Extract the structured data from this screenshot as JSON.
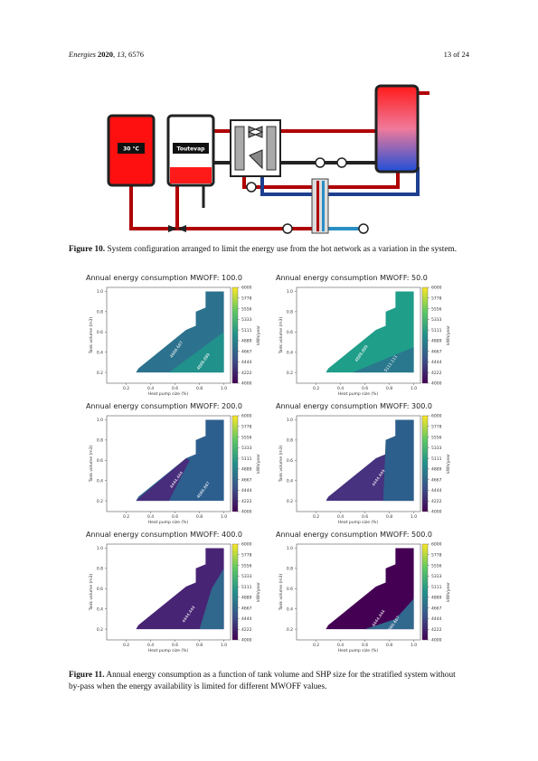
{
  "header": {
    "journal": "Energies",
    "year": "2020",
    "volume": "13",
    "article": "6576",
    "page": "13 of 24"
  },
  "figure10": {
    "tank_labels": [
      "30 °C",
      "Toutevap"
    ],
    "caption": {
      "label": "Figure 10.",
      "text": "System configuration arranged to limit the energy use from the hot network as a variation in the system."
    }
  },
  "figure11": {
    "panels": [
      {
        "title": "Annual energy consumption MWOFF: 100.0",
        "ylabel": "Tank volume (m3)",
        "xlabel": "Heat pump size (%)",
        "yticks": [
          "1.0",
          "0.8",
          "0.6",
          "0.4",
          "0.2"
        ],
        "xticks": [
          "0.2",
          "0.4",
          "0.6",
          "0.8",
          "1.0"
        ],
        "cbar_ticks": [
          "6000",
          "5778",
          "5556",
          "5333",
          "5111",
          "4889",
          "4667",
          "4444",
          "4222",
          "4000"
        ],
        "cbar_label": "kWh/year",
        "contour_labels": [
          "4666.667",
          "4888.889"
        ]
      },
      {
        "title": "Annual energy consumption MWOFF: 50.0",
        "ylabel": "Tank volume (m3)",
        "xlabel": "Heat pump size (%)",
        "yticks": [
          "1.0",
          "0.8",
          "0.6",
          "0.4",
          "0.2"
        ],
        "xticks": [
          "0.2",
          "0.4",
          "0.6",
          "0.8",
          "1.0"
        ],
        "cbar_ticks": [
          "6000",
          "5778",
          "5556",
          "5333",
          "5111",
          "4889",
          "4667",
          "4444",
          "4222",
          "4000"
        ],
        "cbar_label": "kWh/year",
        "contour_labels": [
          "4888.889",
          "5111.111"
        ]
      },
      {
        "title": "Annual energy consumption MWOFF: 200.0",
        "ylabel": "Tank volume (m3)",
        "xlabel": "Heat pump size (%)",
        "yticks": [
          "1.0",
          "0.8",
          "0.6",
          "0.4",
          "0.2"
        ],
        "xticks": [
          "0.2",
          "0.4",
          "0.6",
          "0.8",
          "1.0"
        ],
        "cbar_ticks": [
          "6000",
          "5778",
          "5556",
          "5333",
          "5111",
          "4889",
          "4667",
          "4444",
          "4222",
          "4000"
        ],
        "cbar_label": "kWh/year",
        "contour_labels": [
          "4444.444",
          "4666.667"
        ]
      },
      {
        "title": "Annual energy consumption MWOFF: 300.0",
        "ylabel": "Tank volume (m3)",
        "xlabel": "Heat pump size (%)",
        "yticks": [
          "1.0",
          "0.8",
          "0.6",
          "0.4",
          "0.2"
        ],
        "xticks": [
          "0.2",
          "0.4",
          "0.6",
          "0.8",
          "1.0"
        ],
        "cbar_ticks": [
          "6000",
          "5778",
          "5556",
          "5333",
          "5111",
          "4889",
          "4667",
          "4444",
          "4222",
          "4000"
        ],
        "cbar_label": "kWh/year",
        "contour_labels": [
          "4444.444"
        ]
      },
      {
        "title": "Annual energy consumption MWOFF: 400.0",
        "ylabel": "Tank volume (m3)",
        "xlabel": "Heat pump size (%)",
        "yticks": [
          "1.0",
          "0.8",
          "0.6",
          "0.4",
          "0.2"
        ],
        "xticks": [
          "0.2",
          "0.4",
          "0.6",
          "0.8",
          "1.0"
        ],
        "cbar_ticks": [
          "6000",
          "5778",
          "5556",
          "5333",
          "5111",
          "4889",
          "4667",
          "4444",
          "4222",
          "4000"
        ],
        "cbar_label": "kWh/year",
        "contour_labels": [
          "4444.444"
        ]
      },
      {
        "title": "Annual energy consumption MWOFF: 500.0",
        "ylabel": "Tank volume (m3)",
        "xlabel": "Heat pump size (%)",
        "yticks": [
          "1.0",
          "0.8",
          "0.6",
          "0.4",
          "0.2"
        ],
        "xticks": [
          "0.2",
          "0.4",
          "0.6",
          "0.8",
          "1.0"
        ],
        "cbar_ticks": [
          "6000",
          "5778",
          "5556",
          "5333",
          "5111",
          "4889",
          "4667",
          "4444",
          "4222",
          "4000"
        ],
        "cbar_label": "kWh/year",
        "contour_labels": [
          "4444.444",
          "4666.667"
        ]
      }
    ],
    "caption": {
      "label": "Figure 11.",
      "text": "Annual energy consumption as a function of tank volume and SHP size for the stratified system without by-pass when the energy availability is limited for different MWOFF values."
    }
  }
}
